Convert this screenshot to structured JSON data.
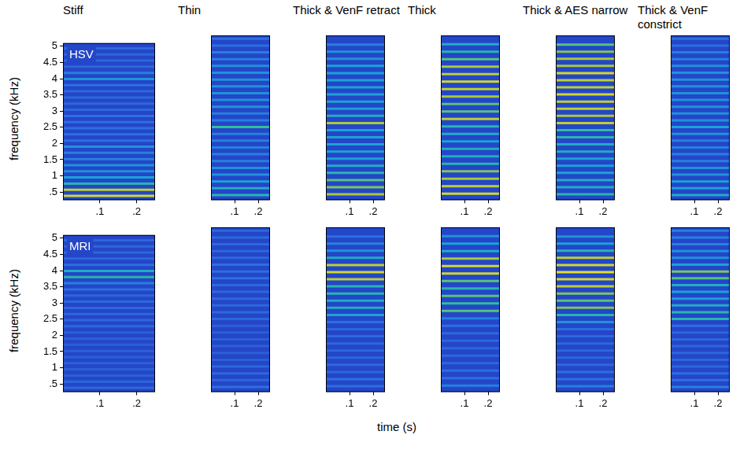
{
  "chart_data": {
    "type": "spectrogram",
    "x_label": "time (s)",
    "y_label": "frequency (kHz)",
    "xlim": [
      0,
      0.25
    ],
    "ylim": [
      0.25,
      5.1
    ],
    "xticks": [
      {
        "value": 0.1,
        "label": ".1"
      },
      {
        "value": 0.2,
        "label": ".2"
      }
    ],
    "yticks": [
      {
        "value": 0.5,
        "label": ".5"
      },
      1,
      1.5,
      2,
      2.5,
      3,
      3.5,
      4,
      4.5,
      5
    ],
    "grid": false,
    "rows": [
      "HSV",
      "MRI"
    ],
    "columns": [
      {
        "title": "Stiff",
        "harmonics": [
          0.38,
          0.57,
          0.76,
          0.95,
          1.14,
          1.33,
          1.52,
          1.71,
          1.9,
          2.09,
          2.28,
          2.47,
          2.66,
          2.85,
          3.04,
          3.23,
          3.42,
          3.61,
          3.8,
          3.99,
          4.18,
          4.37,
          4.56,
          4.75,
          4.94
        ],
        "intensity": [
          [
            0.9,
            0.85,
            0.6,
            0.5,
            0.45,
            0.45,
            0.4,
            0.4,
            0.45,
            0.35,
            0.35,
            0.35,
            0.35,
            0.35,
            0.3,
            0.3,
            0.3,
            0.3,
            0.35,
            0.45,
            0.4,
            0.3,
            0.3,
            0.3,
            0.3
          ],
          [
            0.3,
            0.3,
            0.25,
            0.25,
            0.25,
            0.25,
            0.25,
            0.25,
            0.25,
            0.25,
            0.3,
            0.3,
            0.3,
            0.3,
            0.3,
            0.3,
            0.35,
            0.4,
            0.6,
            0.55,
            0.35,
            0.3,
            0.3,
            0.3,
            0.3
          ]
        ]
      },
      {
        "title": "Thin",
        "harmonics": [
          0.4,
          0.6,
          0.8,
          1.0,
          1.2,
          1.4,
          1.6,
          1.8,
          2.0,
          2.2,
          2.4,
          2.6,
          2.8,
          3.0,
          3.2,
          3.4,
          3.6,
          3.8,
          4.0,
          4.2,
          4.4,
          4.6,
          4.8,
          5.0
        ],
        "intensity": [
          [
            0.6,
            0.55,
            0.5,
            0.45,
            0.45,
            0.4,
            0.4,
            0.4,
            0.4,
            0.4,
            0.65,
            0.4,
            0.4,
            0.45,
            0.45,
            0.45,
            0.45,
            0.45,
            0.45,
            0.45,
            0.4,
            0.4,
            0.35,
            0.35
          ],
          [
            0.35,
            0.3,
            0.3,
            0.3,
            0.25,
            0.25,
            0.25,
            0.25,
            0.25,
            0.25,
            0.3,
            0.3,
            0.3,
            0.3,
            0.3,
            0.3,
            0.35,
            0.35,
            0.35,
            0.3,
            0.3,
            0.3,
            0.3,
            0.3
          ]
        ]
      },
      {
        "title": "Thick & VenF retract",
        "harmonics": [
          0.42,
          0.63,
          0.84,
          1.05,
          1.26,
          1.47,
          1.68,
          1.89,
          2.1,
          2.31,
          2.52,
          2.73,
          2.94,
          3.15,
          3.36,
          3.57,
          3.78,
          3.99,
          4.2,
          4.41,
          4.62,
          4.83
        ],
        "intensity": [
          [
            0.8,
            0.75,
            0.7,
            0.6,
            0.55,
            0.5,
            0.5,
            0.5,
            0.5,
            0.5,
            0.8,
            0.55,
            0.5,
            0.5,
            0.5,
            0.5,
            0.5,
            0.5,
            0.5,
            0.45,
            0.45,
            0.4
          ],
          [
            0.35,
            0.35,
            0.3,
            0.3,
            0.3,
            0.3,
            0.3,
            0.3,
            0.3,
            0.35,
            0.5,
            0.55,
            0.55,
            0.6,
            0.6,
            0.85,
            0.9,
            0.85,
            0.55,
            0.45,
            0.4,
            0.35
          ]
        ]
      },
      {
        "title": "Thick",
        "harmonics": [
          0.44,
          0.66,
          0.88,
          1.1,
          1.32,
          1.54,
          1.76,
          1.98,
          2.2,
          2.42,
          2.64,
          2.86,
          3.08,
          3.3,
          3.52,
          3.74,
          3.96,
          4.18,
          4.4,
          4.62,
          4.84
        ],
        "intensity": [
          [
            0.9,
            0.85,
            0.8,
            0.75,
            0.6,
            0.55,
            0.55,
            0.5,
            0.55,
            0.6,
            0.85,
            0.7,
            0.7,
            0.8,
            0.85,
            0.9,
            0.85,
            0.8,
            0.7,
            0.6,
            0.55
          ],
          [
            0.4,
            0.35,
            0.35,
            0.3,
            0.3,
            0.3,
            0.3,
            0.3,
            0.35,
            0.4,
            0.7,
            0.65,
            0.7,
            0.6,
            0.7,
            0.9,
            0.9,
            0.8,
            0.55,
            0.5,
            0.45
          ]
        ]
      },
      {
        "title": "Thick & AES narrow",
        "harmonics": [
          0.42,
          0.63,
          0.84,
          1.05,
          1.26,
          1.47,
          1.68,
          1.89,
          2.1,
          2.31,
          2.52,
          2.73,
          2.94,
          3.15,
          3.36,
          3.57,
          3.78,
          3.99,
          4.2,
          4.41,
          4.62,
          4.83
        ],
        "intensity": [
          [
            0.6,
            0.55,
            0.55,
            0.5,
            0.5,
            0.5,
            0.55,
            0.55,
            0.6,
            0.65,
            0.85,
            0.8,
            0.85,
            0.85,
            0.9,
            0.85,
            0.85,
            0.9,
            0.8,
            0.8,
            0.75,
            0.7
          ],
          [
            0.4,
            0.35,
            0.35,
            0.3,
            0.3,
            0.3,
            0.3,
            0.3,
            0.35,
            0.45,
            0.6,
            0.75,
            0.7,
            0.75,
            0.85,
            0.9,
            0.95,
            0.9,
            0.85,
            0.6,
            0.5,
            0.45
          ]
        ]
      },
      {
        "title": "Thick & VenF constrict",
        "harmonics": [
          0.4,
          0.6,
          0.8,
          1.0,
          1.2,
          1.4,
          1.6,
          1.8,
          2.0,
          2.2,
          2.4,
          2.6,
          2.8,
          3.0,
          3.2,
          3.4,
          3.6,
          3.8,
          4.0,
          4.2,
          4.4,
          4.6,
          4.8,
          5.0
        ],
        "intensity": [
          [
            0.55,
            0.5,
            0.5,
            0.45,
            0.45,
            0.4,
            0.4,
            0.4,
            0.4,
            0.45,
            0.5,
            0.45,
            0.45,
            0.45,
            0.45,
            0.45,
            0.45,
            0.45,
            0.45,
            0.45,
            0.4,
            0.4,
            0.35,
            0.35
          ],
          [
            0.4,
            0.35,
            0.35,
            0.3,
            0.3,
            0.3,
            0.3,
            0.3,
            0.3,
            0.35,
            0.6,
            0.6,
            0.55,
            0.5,
            0.5,
            0.55,
            0.7,
            0.75,
            0.5,
            0.45,
            0.45,
            0.4,
            0.4,
            0.4
          ]
        ]
      }
    ]
  }
}
